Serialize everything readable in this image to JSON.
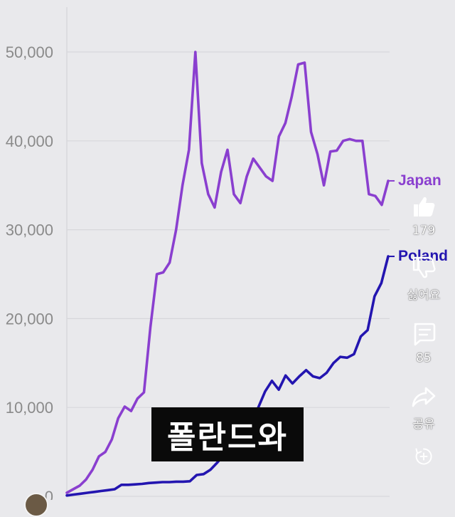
{
  "caption": {
    "text": "폴란드와"
  },
  "actions": {
    "like_count": "179",
    "dislike_label": "싫어요",
    "comment_count": "85",
    "share_label": "공유"
  },
  "colors": {
    "japan": "#8a3fcf",
    "poland": "#2315b0",
    "grid": "#d7d7db",
    "axis_text": "#8a8a8a",
    "caption_bg": "#0a0a0a",
    "background": "#e9e9ec"
  },
  "icons": [
    "thumbs-up-icon",
    "thumbs-down-icon",
    "comment-icon",
    "share-icon",
    "remix-icon"
  ],
  "chart_data": {
    "type": "line",
    "title": "",
    "xlabel": "",
    "ylabel": "",
    "ylim": [
      0,
      50000
    ],
    "yticks": [
      "0",
      "10,000",
      "20,000",
      "30,000",
      "40,000",
      "50,000"
    ],
    "grid": true,
    "legend": "line end labels",
    "series": [
      {
        "name": "Japan",
        "values": [
          400,
          800,
          1200,
          1900,
          3000,
          4500,
          5000,
          6400,
          8800,
          10100,
          9600,
          11000,
          11700,
          19000,
          25000,
          25200,
          26300,
          30000,
          35000,
          39000,
          50000,
          37500,
          34000,
          32500,
          36500,
          39000,
          34000,
          33000,
          36000,
          38000,
          37000,
          36000,
          35500,
          40500,
          42000,
          45000,
          48600,
          48800,
          41000,
          38500,
          35000,
          38800,
          38900,
          40000,
          40200,
          40000,
          40000,
          34000,
          33800,
          32800,
          35500
        ]
      },
      {
        "name": "Poland",
        "values": [
          100,
          200,
          300,
          400,
          500,
          600,
          700,
          800,
          1300,
          1300,
          1350,
          1400,
          1500,
          1550,
          1600,
          1600,
          1650,
          1650,
          1700,
          2400,
          2500,
          3000,
          3800,
          4700,
          5500,
          6500,
          7600,
          8500,
          10000,
          11800,
          13000,
          12000,
          13600,
          12700,
          13500,
          14200,
          13500,
          13300,
          13900,
          15000,
          15700,
          15600,
          16000,
          18000,
          18700,
          22500,
          24000,
          27000
        ]
      }
    ]
  }
}
